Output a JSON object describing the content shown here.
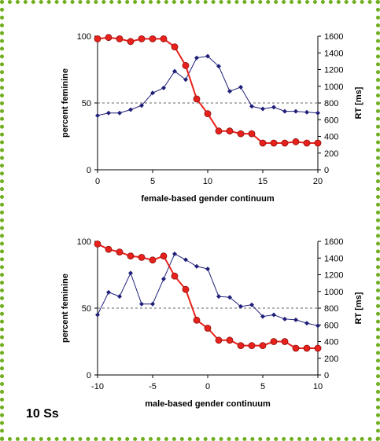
{
  "subject_label": "10 Ss",
  "colors": {
    "border": "#6fae1e",
    "percent_series": "#e8211c",
    "percent_marker_edge": "#8c0d0a",
    "rt_series": "#1f1f7a",
    "reference_line": "#666666"
  },
  "chart_data": [
    {
      "type": "line",
      "xlabel": "female-based gender continuum",
      "ylabel": "percent feminine",
      "y2label": "RT [ms]",
      "xlim": [
        0,
        20
      ],
      "xticks": [
        0,
        5,
        10,
        15,
        20
      ],
      "ylim": [
        0,
        100
      ],
      "yticks": [
        0,
        50,
        100
      ],
      "y2lim": [
        0,
        1600
      ],
      "y2ticks": [
        0,
        200,
        400,
        600,
        800,
        1000,
        1200,
        1400,
        1600
      ],
      "reference_y": 50,
      "x": [
        0,
        1,
        2,
        3,
        4,
        5,
        6,
        7,
        8,
        9,
        10,
        11,
        12,
        13,
        14,
        15,
        16,
        17,
        18,
        19,
        20
      ],
      "series": [
        {
          "axis": "left",
          "marker": "circle",
          "values": [
            98,
            99,
            98,
            96,
            98,
            98,
            98,
            92,
            78,
            53,
            42,
            29,
            29,
            27,
            27,
            20,
            20,
            20,
            21,
            20,
            20
          ]
        },
        {
          "axis": "right",
          "marker": "diamond",
          "values": [
            650,
            680,
            680,
            720,
            770,
            920,
            980,
            1180,
            1080,
            1340,
            1360,
            1240,
            940,
            990,
            760,
            730,
            750,
            700,
            700,
            690,
            680
          ]
        }
      ]
    },
    {
      "type": "line",
      "xlabel": "male-based gender continuum",
      "ylabel": "percent feminine",
      "y2label": "RT [ms]",
      "xlim": [
        -10,
        10
      ],
      "xticks": [
        -10,
        -5,
        0,
        5,
        10
      ],
      "ylim": [
        0,
        100
      ],
      "yticks": [
        0,
        50,
        100
      ],
      "y2lim": [
        0,
        1600
      ],
      "y2ticks": [
        0,
        200,
        400,
        600,
        800,
        1000,
        1200,
        1400,
        1600
      ],
      "reference_y": 50,
      "x": [
        -10,
        -9,
        -8,
        -7,
        -6,
        -5,
        -4,
        -3,
        -2,
        -1,
        0,
        1,
        2,
        3,
        4,
        5,
        6,
        7,
        8,
        9,
        10
      ],
      "series": [
        {
          "axis": "left",
          "marker": "circle",
          "values": [
            98,
            94,
            92,
            89,
            88,
            86,
            89,
            74,
            64,
            41,
            35,
            26,
            26,
            22,
            22,
            22,
            25,
            25,
            20,
            20,
            20
          ]
        },
        {
          "axis": "right",
          "marker": "diamond",
          "values": [
            720,
            990,
            940,
            1220,
            850,
            850,
            1150,
            1450,
            1380,
            1300,
            1270,
            940,
            930,
            820,
            840,
            700,
            720,
            670,
            660,
            620,
            590
          ]
        }
      ]
    }
  ]
}
